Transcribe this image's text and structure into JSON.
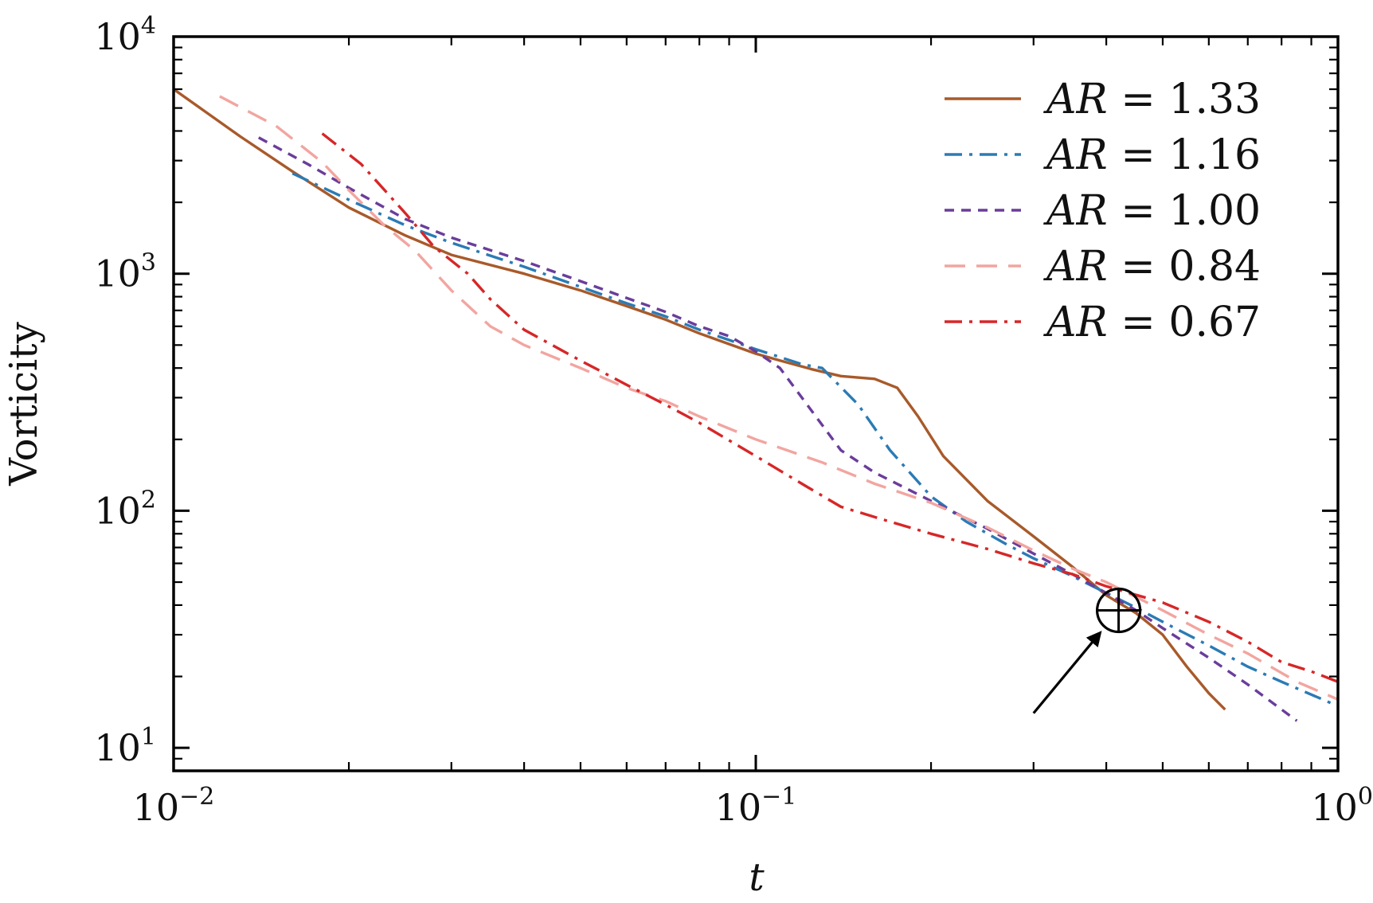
{
  "chart_data": {
    "type": "line",
    "xscale": "log",
    "yscale": "log",
    "xlim": [
      0.01,
      1.0
    ],
    "ylim": [
      8,
      10000
    ],
    "xlabel": "t",
    "ylabel": "Vorticity",
    "legend_position": "top-right",
    "grid": false,
    "x_ticks": [
      {
        "value": 0.01,
        "base": "10",
        "exp": "−2"
      },
      {
        "value": 0.1,
        "base": "10",
        "exp": "−1"
      },
      {
        "value": 1.0,
        "base": "10",
        "exp": "0"
      }
    ],
    "y_ticks": [
      {
        "value": 10,
        "base": "10",
        "exp": "1"
      },
      {
        "value": 100,
        "base": "10",
        "exp": "2"
      },
      {
        "value": 1000,
        "base": "10",
        "exp": "3"
      },
      {
        "value": 10000,
        "base": "10",
        "exp": "4"
      }
    ],
    "series": [
      {
        "name": "AR = 1.33",
        "legend_label": {
          "lhs": "AR",
          "eq": " = ",
          "value": "1.33"
        },
        "color": "#a85a2a",
        "dash": "solid",
        "points": [
          [
            0.01,
            6000
          ],
          [
            0.013,
            3800
          ],
          [
            0.016,
            2700
          ],
          [
            0.02,
            1900
          ],
          [
            0.025,
            1450
          ],
          [
            0.03,
            1200
          ],
          [
            0.04,
            1000
          ],
          [
            0.05,
            850
          ],
          [
            0.06,
            730
          ],
          [
            0.07,
            640
          ],
          [
            0.08,
            560
          ],
          [
            0.09,
            505
          ],
          [
            0.1,
            460
          ],
          [
            0.11,
            430
          ],
          [
            0.125,
            395
          ],
          [
            0.14,
            370
          ],
          [
            0.16,
            360
          ],
          [
            0.175,
            330
          ],
          [
            0.19,
            250
          ],
          [
            0.21,
            170
          ],
          [
            0.25,
            110
          ],
          [
            0.3,
            78
          ],
          [
            0.35,
            58
          ],
          [
            0.4,
            44
          ],
          [
            0.45,
            37
          ],
          [
            0.5,
            30
          ],
          [
            0.55,
            22
          ],
          [
            0.6,
            17
          ],
          [
            0.64,
            14.5
          ]
        ]
      },
      {
        "name": "AR = 1.16",
        "legend_label": {
          "lhs": "AR",
          "eq": " = ",
          "value": "1.16"
        },
        "color": "#2b7bb5",
        "dash": "dashdot",
        "points": [
          [
            0.016,
            2650
          ],
          [
            0.02,
            2050
          ],
          [
            0.025,
            1600
          ],
          [
            0.03,
            1350
          ],
          [
            0.04,
            1070
          ],
          [
            0.05,
            880
          ],
          [
            0.06,
            750
          ],
          [
            0.07,
            660
          ],
          [
            0.08,
            580
          ],
          [
            0.1,
            480
          ],
          [
            0.12,
            415
          ],
          [
            0.13,
            400
          ],
          [
            0.15,
            280
          ],
          [
            0.17,
            180
          ],
          [
            0.2,
            115
          ],
          [
            0.23,
            90
          ],
          [
            0.27,
            72
          ],
          [
            0.3,
            63
          ],
          [
            0.35,
            53
          ],
          [
            0.4,
            45
          ],
          [
            0.45,
            39
          ],
          [
            0.5,
            34
          ],
          [
            0.6,
            27
          ],
          [
            0.7,
            22
          ],
          [
            0.8,
            19
          ],
          [
            1.0,
            15
          ]
        ]
      },
      {
        "name": "AR = 1.00",
        "legend_label": {
          "lhs": "AR",
          "eq": " = ",
          "value": "1.00"
        },
        "color": "#6a3d9a",
        "dash": "dashed",
        "points": [
          [
            0.014,
            3750
          ],
          [
            0.017,
            2900
          ],
          [
            0.02,
            2300
          ],
          [
            0.025,
            1700
          ],
          [
            0.03,
            1420
          ],
          [
            0.04,
            1130
          ],
          [
            0.05,
            930
          ],
          [
            0.06,
            790
          ],
          [
            0.07,
            690
          ],
          [
            0.08,
            600
          ],
          [
            0.09,
            545
          ],
          [
            0.1,
            470
          ],
          [
            0.11,
            400
          ],
          [
            0.12,
            300
          ],
          [
            0.14,
            180
          ],
          [
            0.16,
            145
          ],
          [
            0.2,
            110
          ],
          [
            0.25,
            84
          ],
          [
            0.3,
            66
          ],
          [
            0.35,
            54
          ],
          [
            0.4,
            45
          ],
          [
            0.45,
            38
          ],
          [
            0.5,
            32
          ],
          [
            0.6,
            24
          ],
          [
            0.7,
            18.5
          ],
          [
            0.85,
            13
          ]
        ]
      },
      {
        "name": "AR = 0.84",
        "legend_label": {
          "lhs": "AR",
          "eq": " = ",
          "value": "0.84"
        },
        "color": "#f2a5a0",
        "dash": "longdash",
        "points": [
          [
            0.012,
            5600
          ],
          [
            0.015,
            4200
          ],
          [
            0.018,
            2950
          ],
          [
            0.02,
            2250
          ],
          [
            0.023,
            1600
          ],
          [
            0.026,
            1250
          ],
          [
            0.03,
            850
          ],
          [
            0.035,
            600
          ],
          [
            0.04,
            500
          ],
          [
            0.05,
            400
          ],
          [
            0.06,
            330
          ],
          [
            0.07,
            290
          ],
          [
            0.08,
            250
          ],
          [
            0.1,
            200
          ],
          [
            0.13,
            160
          ],
          [
            0.16,
            130
          ],
          [
            0.2,
            108
          ],
          [
            0.25,
            85
          ],
          [
            0.3,
            68
          ],
          [
            0.35,
            57
          ],
          [
            0.4,
            50
          ],
          [
            0.5,
            38
          ],
          [
            0.6,
            30
          ],
          [
            0.7,
            25
          ],
          [
            0.85,
            19
          ],
          [
            1.0,
            16
          ]
        ]
      },
      {
        "name": "AR = 0.67",
        "legend_label": {
          "lhs": "AR",
          "eq": " = ",
          "value": "0.67"
        },
        "color": "#d62728",
        "dash": "dashdot",
        "points": [
          [
            0.018,
            3900
          ],
          [
            0.021,
            2900
          ],
          [
            0.025,
            1800
          ],
          [
            0.028,
            1300
          ],
          [
            0.032,
            1000
          ],
          [
            0.035,
            780
          ],
          [
            0.04,
            580
          ],
          [
            0.05,
            430
          ],
          [
            0.06,
            340
          ],
          [
            0.07,
            280
          ],
          [
            0.08,
            235
          ],
          [
            0.1,
            170
          ],
          [
            0.12,
            130
          ],
          [
            0.14,
            104
          ],
          [
            0.17,
            90
          ],
          [
            0.2,
            80
          ],
          [
            0.25,
            69
          ],
          [
            0.3,
            60
          ],
          [
            0.35,
            54
          ],
          [
            0.4,
            48
          ],
          [
            0.5,
            41
          ],
          [
            0.6,
            34
          ],
          [
            0.7,
            28
          ],
          [
            0.8,
            23
          ],
          [
            0.9,
            21
          ],
          [
            1.0,
            19
          ]
        ]
      }
    ],
    "annotation": {
      "name": "crossing-point-marker",
      "symbol": "circle-plus",
      "x": 0.42,
      "y": 38,
      "arrow_from": [
        0.3,
        14
      ]
    }
  }
}
